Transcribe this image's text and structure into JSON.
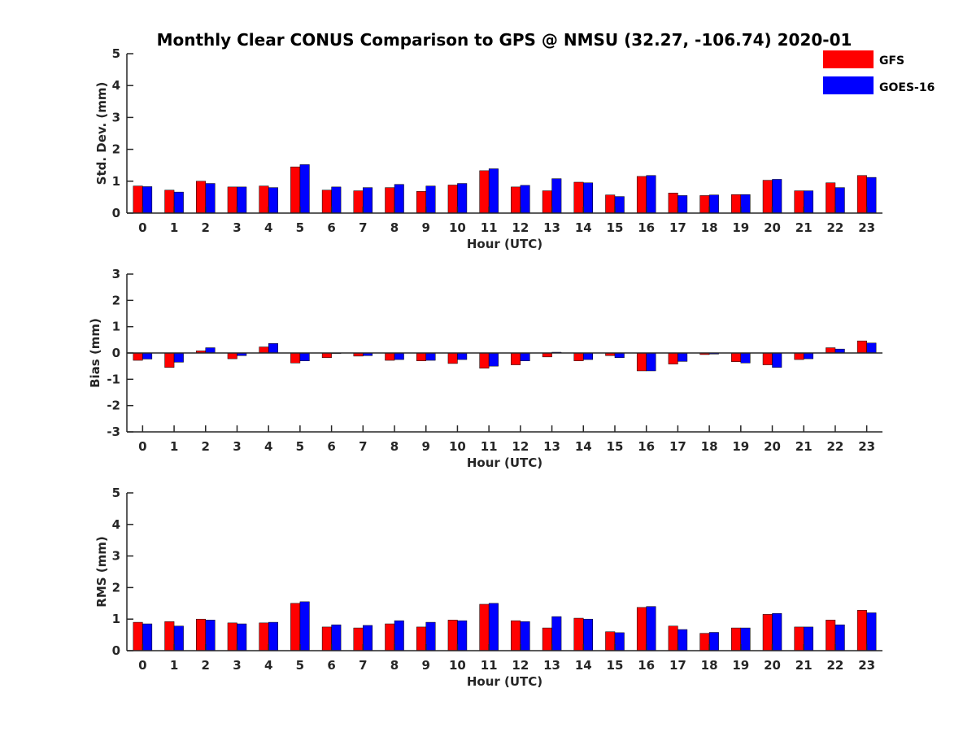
{
  "chart_data": {
    "title": "Monthly Clear CONUS Comparison to GPS @ NMSU (32.27, -106.74) 2020-01",
    "type": "bar",
    "categories": [
      "0",
      "1",
      "2",
      "3",
      "4",
      "5",
      "6",
      "7",
      "8",
      "9",
      "10",
      "11",
      "12",
      "13",
      "14",
      "15",
      "16",
      "17",
      "18",
      "19",
      "20",
      "21",
      "22",
      "23"
    ],
    "legend": {
      "placement": "top-right",
      "entries": [
        {
          "name": "GFS",
          "color": "#ff0000"
        },
        {
          "name": "GOES-16",
          "color": "#0000ff"
        }
      ]
    },
    "panels": [
      {
        "id": "std",
        "ylabel": "Std. Dev. (mm)",
        "xlabel": "Hour (UTC)",
        "ylim": [
          0,
          5
        ],
        "yticks": [
          "0",
          "1",
          "2",
          "3",
          "4",
          "5"
        ],
        "series": [
          {
            "name": "GFS",
            "color": "#ff0000",
            "values": [
              0.85,
              0.72,
              1.0,
              0.82,
              0.85,
              1.45,
              0.72,
              0.7,
              0.8,
              0.68,
              0.88,
              1.33,
              0.82,
              0.7,
              0.97,
              0.57,
              1.15,
              0.63,
              0.55,
              0.58,
              1.03,
              0.7,
              0.95,
              1.18
            ]
          },
          {
            "name": "GOES-16",
            "color": "#0000ff",
            "values": [
              0.83,
              0.66,
              0.93,
              0.82,
              0.8,
              1.52,
              0.82,
              0.8,
              0.9,
              0.85,
              0.93,
              1.39,
              0.87,
              1.08,
              0.95,
              0.52,
              1.18,
              0.55,
              0.57,
              0.58,
              1.06,
              0.7,
              0.8,
              1.12
            ]
          }
        ]
      },
      {
        "id": "bias",
        "ylabel": "Bias (mm)",
        "xlabel": "Hour (UTC)",
        "ylim": [
          -3,
          3
        ],
        "yticks": [
          "-3",
          "-2",
          "-1",
          "0",
          "1",
          "2",
          "3"
        ],
        "series": [
          {
            "name": "GFS",
            "color": "#ff0000",
            "values": [
              -0.28,
              -0.55,
              0.08,
              -0.22,
              0.23,
              -0.38,
              -0.18,
              -0.12,
              -0.28,
              -0.3,
              -0.4,
              -0.58,
              -0.45,
              -0.15,
              -0.3,
              -0.1,
              -0.68,
              -0.42,
              -0.06,
              -0.33,
              -0.45,
              -0.25,
              0.2,
              0.46
            ]
          },
          {
            "name": "GOES-16",
            "color": "#0000ff",
            "values": [
              -0.23,
              -0.35,
              0.2,
              -0.1,
              0.36,
              -0.3,
              -0.02,
              -0.1,
              -0.25,
              -0.28,
              -0.25,
              -0.5,
              -0.3,
              0.03,
              -0.25,
              -0.18,
              -0.68,
              -0.32,
              -0.04,
              -0.38,
              -0.55,
              -0.22,
              0.15,
              0.38
            ]
          }
        ]
      },
      {
        "id": "rms",
        "ylabel": "RMS (mm)",
        "xlabel": "Hour (UTC)",
        "ylim": [
          0,
          5
        ],
        "yticks": [
          "0",
          "1",
          "2",
          "3",
          "4",
          "5"
        ],
        "series": [
          {
            "name": "GFS",
            "color": "#ff0000",
            "values": [
              0.9,
              0.92,
              1.0,
              0.88,
              0.88,
              1.5,
              0.75,
              0.72,
              0.85,
              0.75,
              0.97,
              1.47,
              0.95,
              0.72,
              1.03,
              0.6,
              1.37,
              0.78,
              0.55,
              0.72,
              1.15,
              0.75,
              0.97,
              1.28
            ]
          },
          {
            "name": "GOES-16",
            "color": "#0000ff",
            "values": [
              0.85,
              0.78,
              0.97,
              0.85,
              0.9,
              1.55,
              0.82,
              0.8,
              0.95,
              0.9,
              0.95,
              1.5,
              0.92,
              1.08,
              1.0,
              0.57,
              1.4,
              0.67,
              0.58,
              0.72,
              1.18,
              0.75,
              0.82,
              1.2
            ]
          }
        ]
      }
    ]
  }
}
